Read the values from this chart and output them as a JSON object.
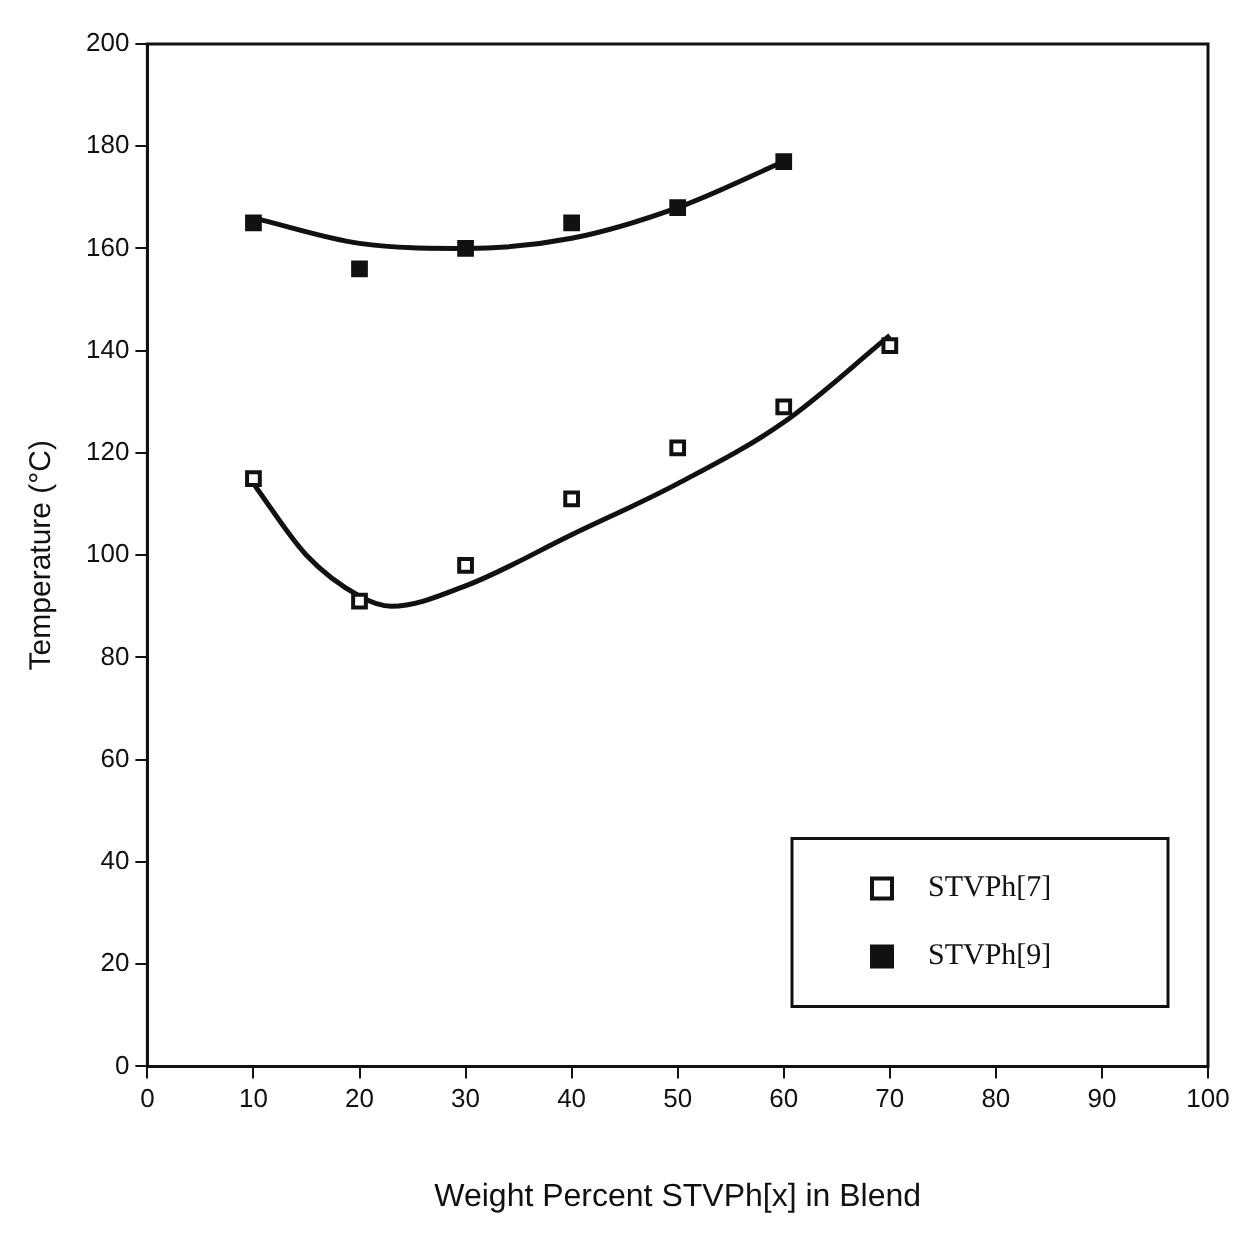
{
  "chart_data": {
    "type": "scatter",
    "xlabel": "Weight Percent STVPh[x] in Blend",
    "ylabel": "Temperature (°C)",
    "xlim": [
      0,
      100
    ],
    "xticks": [
      0,
      10,
      20,
      30,
      40,
      50,
      60,
      70,
      80,
      90,
      100
    ],
    "ylim": [
      0,
      200
    ],
    "yticks": [
      0,
      20,
      40,
      60,
      80,
      100,
      120,
      140,
      160,
      180,
      200
    ],
    "grid": false,
    "legend": "bottom right",
    "marker": "square",
    "series": [
      {
        "name": "STVPh[7]",
        "color": "#ffffff",
        "x": [
          10,
          20,
          30,
          40,
          50,
          60,
          70
        ],
        "values": [
          115,
          91,
          98,
          111,
          121,
          129,
          141
        ]
      },
      {
        "name": "STVPh[9]",
        "color": "#111111",
        "x": [
          10,
          20,
          30,
          40,
          50,
          60
        ],
        "values": [
          165,
          156,
          160,
          165,
          168,
          177
        ]
      },
      {
        "type": "line",
        "color": "#111111",
        "marker": "none",
        "x": [
          10,
          15,
          20,
          23,
          30,
          40,
          50,
          60,
          70
        ],
        "values": [
          114,
          100,
          92,
          90,
          94,
          104,
          114,
          126,
          143
        ]
      },
      {
        "type": "line",
        "color": "#111111",
        "marker": "none",
        "x": [
          10,
          20,
          30,
          40,
          50,
          60
        ],
        "values": [
          166,
          161,
          160,
          162,
          168,
          177
        ]
      }
    ]
  }
}
